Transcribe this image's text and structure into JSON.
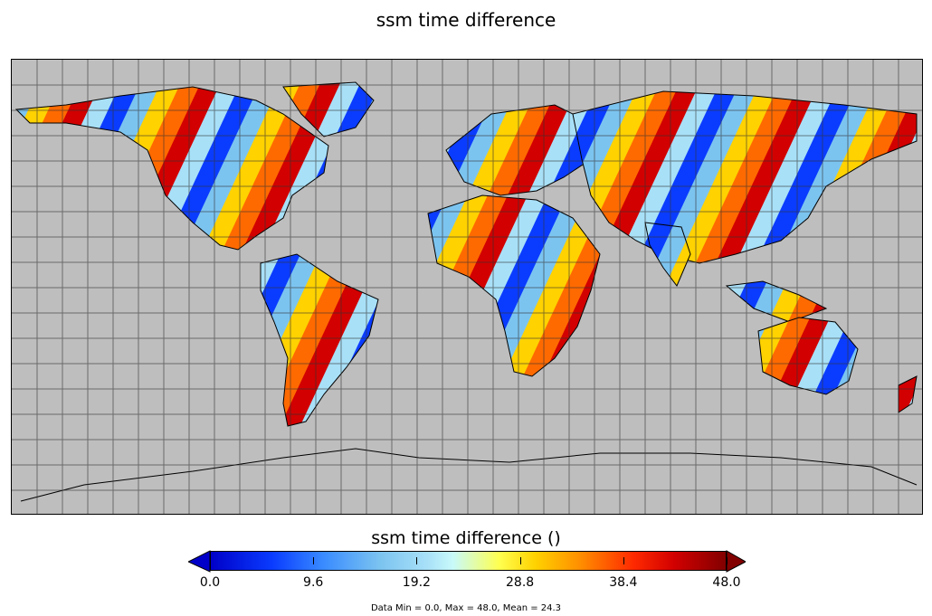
{
  "title": "ssm time difference",
  "colorbar": {
    "title": "ssm time difference ()",
    "ticks": [
      "0.0",
      "9.6",
      "19.2",
      "28.8",
      "38.4",
      "48.0"
    ],
    "min": 0.0,
    "max": 48.0,
    "extend": "both"
  },
  "stats_text": "Data Min = 0.0, Max = 48.0, Mean = 24.3",
  "map": {
    "projection": "equirectangular",
    "ocean_color": "#bebebe",
    "grid": true,
    "grid_spacing_deg": 10
  }
}
